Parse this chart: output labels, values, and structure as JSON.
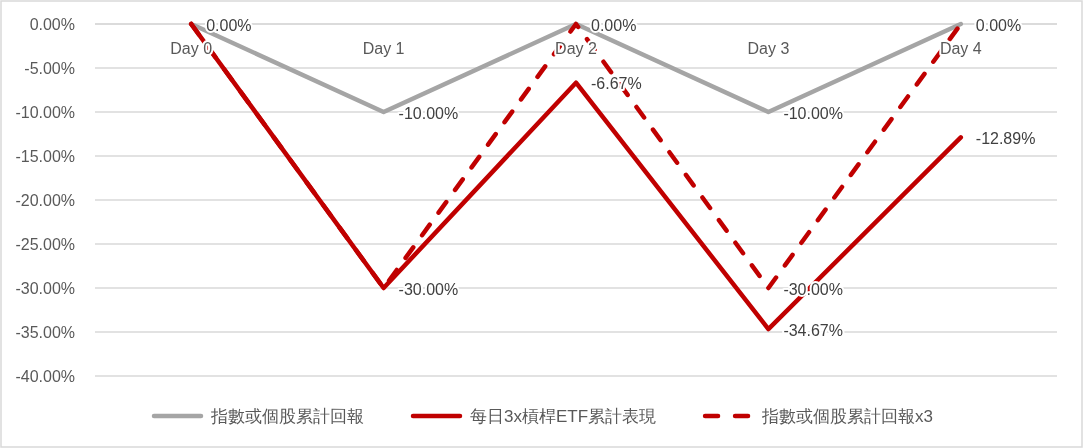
{
  "chart_data": {
    "type": "line",
    "categories": [
      "Day 0",
      "Day 1",
      "Day 2",
      "Day 3",
      "Day 4"
    ],
    "ylim": [
      -40,
      0
    ],
    "yticks": [
      {
        "value": -40,
        "label": "-40.00%"
      },
      {
        "value": -35,
        "label": "-35.00%"
      },
      {
        "value": -30,
        "label": "-30.00%"
      },
      {
        "value": -25,
        "label": "-25.00%"
      },
      {
        "value": -20,
        "label": "-20.00%"
      },
      {
        "value": -15,
        "label": "-15.00%"
      },
      {
        "value": -10,
        "label": "-10.00%"
      },
      {
        "value": -5,
        "label": "-5.00%"
      },
      {
        "value": 0,
        "label": "0.00%"
      }
    ],
    "grid": "y",
    "legend": "bottom",
    "series": [
      {
        "name": "指數或個股累計回報",
        "color": "#a5a5a5",
        "line_style": "solid",
        "values": [
          0,
          -10,
          0,
          -10,
          0
        ],
        "value_labels": [
          "0.00%",
          "-10.00%",
          "0.00%",
          "-10.00%",
          "0.00%"
        ]
      },
      {
        "name": "每日3x槓桿ETF累計表現",
        "color": "#c00000",
        "line_style": "solid",
        "values": [
          0,
          -30,
          -6.67,
          -34.67,
          -12.89
        ],
        "value_labels": [
          null,
          "-30.00%",
          "-6.67%",
          "-34.67%",
          "-12.89%"
        ]
      },
      {
        "name": "指數或個股累計回報x3",
        "color": "#c00000",
        "line_style": "dashed",
        "values": [
          0,
          -30,
          0,
          -30,
          0
        ],
        "value_labels": [
          null,
          null,
          null,
          "-30.00%",
          null
        ]
      }
    ]
  }
}
